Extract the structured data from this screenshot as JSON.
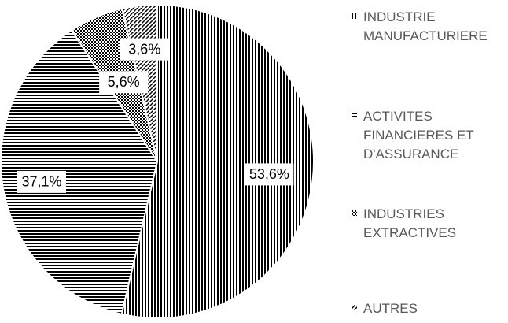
{
  "chart_data": {
    "type": "pie",
    "categories": [
      "INDUSTRIE MANUFACTURIERE",
      "ACTIVITES FINANCIERES ET D'ASSURANCE",
      "INDUSTRIES EXTRACTIVES",
      "AUTRES"
    ],
    "values": [
      53.6,
      37.1,
      5.6,
      3.6
    ],
    "value_labels": [
      "53,6%",
      "37,1%",
      "5,6%",
      "3,6%"
    ]
  }
}
